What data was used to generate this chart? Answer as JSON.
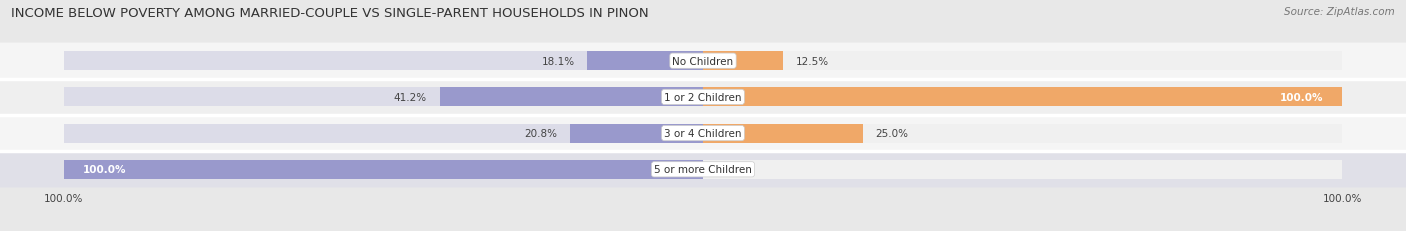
{
  "title": "INCOME BELOW POVERTY AMONG MARRIED-COUPLE VS SINGLE-PARENT HOUSEHOLDS IN PINON",
  "source": "Source: ZipAtlas.com",
  "categories": [
    "No Children",
    "1 or 2 Children",
    "3 or 4 Children",
    "5 or more Children"
  ],
  "married_values": [
    18.1,
    41.2,
    20.8,
    100.0
  ],
  "single_values": [
    12.5,
    100.0,
    25.0,
    0.0
  ],
  "married_color": "#9999cc",
  "single_color": "#f0a868",
  "bar_height": 0.52,
  "max_val": 100.0,
  "bg_color": "#e8e8e8",
  "row_colors": [
    "#f5f5f5",
    "#efefef",
    "#f5f5f5",
    "#e0e0e8"
  ],
  "bar_bg_left": "#dcdce8",
  "bar_bg_right": "#f0f0f0",
  "label_color": "#444444",
  "title_color": "#333333",
  "title_fontsize": 9.5,
  "source_fontsize": 7.5,
  "axis_label_fontsize": 7.5,
  "category_fontsize": 7.5,
  "value_fontsize": 7.5,
  "legend_fontsize": 8.0
}
